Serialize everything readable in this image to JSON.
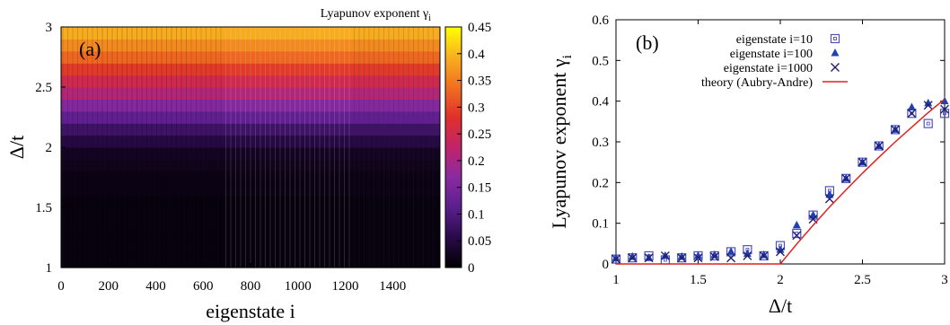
{
  "chart_data": [
    {
      "type": "heatmap",
      "panel_label": "(a)",
      "xlabel": "eigenstate i",
      "ylabel": "Δ/t",
      "xlim": [
        0,
        1600
      ],
      "ylim": [
        1,
        3
      ],
      "x_ticks": [
        0,
        200,
        400,
        600,
        800,
        1000,
        1200,
        1400
      ],
      "y_ticks": [
        1,
        1.5,
        2,
        2.5,
        3
      ],
      "colorbar": {
        "title_main": "Lyapunov exponent γ",
        "title_sub": "i",
        "range": [
          0,
          0.45
        ],
        "ticks": [
          "0",
          "0.05",
          "0.1",
          "0.15",
          "0.2",
          "0.25",
          "0.3",
          "0.35",
          "0.4",
          "0.45"
        ],
        "colormap": [
          "#000000",
          "#2a0a4a",
          "#5a1f8c",
          "#8a2aa0",
          "#c0246a",
          "#e0302a",
          "#f07020",
          "#f8b020",
          "#ffff00"
        ]
      },
      "rows": [
        {
          "delta": 1.05,
          "gamma": 0.01
        },
        {
          "delta": 1.15,
          "gamma": 0.01
        },
        {
          "delta": 1.25,
          "gamma": 0.01
        },
        {
          "delta": 1.35,
          "gamma": 0.01
        },
        {
          "delta": 1.45,
          "gamma": 0.01
        },
        {
          "delta": 1.55,
          "gamma": 0.01
        },
        {
          "delta": 1.65,
          "gamma": 0.015
        },
        {
          "delta": 1.75,
          "gamma": 0.015
        },
        {
          "delta": 1.85,
          "gamma": 0.02
        },
        {
          "delta": 1.95,
          "gamma": 0.025
        },
        {
          "delta": 2.05,
          "gamma": 0.05
        },
        {
          "delta": 2.15,
          "gamma": 0.08
        },
        {
          "delta": 2.25,
          "gamma": 0.12
        },
        {
          "delta": 2.35,
          "gamma": 0.16
        },
        {
          "delta": 2.45,
          "gamma": 0.21
        },
        {
          "delta": 2.55,
          "gamma": 0.25
        },
        {
          "delta": 2.65,
          "gamma": 0.29
        },
        {
          "delta": 2.75,
          "gamma": 0.33
        },
        {
          "delta": 2.85,
          "gamma": 0.36
        },
        {
          "delta": 2.95,
          "gamma": 0.39
        }
      ]
    },
    {
      "type": "scatter",
      "panel_label": "(b)",
      "xlabel": "Δ/t",
      "ylabel": "Lyapunov exponent γ",
      "ylabel_sub": "i",
      "xlim": [
        1,
        3
      ],
      "ylim": [
        0,
        0.6
      ],
      "x_ticks": [
        1,
        1.5,
        2,
        2.5,
        3
      ],
      "y_ticks": [
        0,
        0.1,
        0.2,
        0.3,
        0.4,
        0.5,
        0.6
      ],
      "legend_position": "top-center",
      "series": [
        {
          "name": "eigenstate i=10",
          "marker": "square",
          "color": "#5050c0",
          "x": [
            1.0,
            1.1,
            1.2,
            1.3,
            1.4,
            1.5,
            1.6,
            1.7,
            1.8,
            1.9,
            2.0,
            2.1,
            2.2,
            2.3,
            2.4,
            2.5,
            2.6,
            2.7,
            2.8,
            2.9,
            3.0
          ],
          "y": [
            0.012,
            0.015,
            0.02,
            0.01,
            0.015,
            0.02,
            0.02,
            0.03,
            0.035,
            0.02,
            0.045,
            0.075,
            0.12,
            0.18,
            0.21,
            0.25,
            0.29,
            0.33,
            0.37,
            0.345,
            0.37
          ]
        },
        {
          "name": "eigenstate i=100",
          "marker": "triangle",
          "color": "#2040b0",
          "x": [
            1.0,
            1.1,
            1.2,
            1.3,
            1.4,
            1.5,
            1.6,
            1.7,
            1.8,
            1.9,
            2.0,
            2.1,
            2.2,
            2.3,
            2.4,
            2.5,
            2.6,
            2.7,
            2.8,
            2.9,
            3.0
          ],
          "y": [
            0.015,
            0.018,
            0.015,
            0.02,
            0.018,
            0.02,
            0.022,
            0.03,
            0.025,
            0.022,
            0.035,
            0.095,
            0.12,
            0.17,
            0.21,
            0.25,
            0.29,
            0.33,
            0.385,
            0.395,
            0.4
          ]
        },
        {
          "name": "eigenstate i=1000",
          "marker": "x",
          "color": "#202070",
          "x": [
            1.0,
            1.1,
            1.2,
            1.3,
            1.4,
            1.5,
            1.6,
            1.7,
            1.8,
            1.9,
            2.0,
            2.1,
            2.2,
            2.3,
            2.4,
            2.5,
            2.6,
            2.7,
            2.8,
            2.9,
            3.0
          ],
          "y": [
            0.012,
            0.015,
            0.015,
            0.02,
            0.015,
            0.015,
            0.018,
            0.015,
            0.02,
            0.02,
            0.03,
            0.07,
            0.11,
            0.16,
            0.21,
            0.25,
            0.29,
            0.33,
            0.37,
            0.39,
            0.38
          ]
        },
        {
          "name": "theory (Aubry-Andre)",
          "marker": "line",
          "color": "#e02020",
          "x": [
            1.0,
            2.0,
            2.1,
            2.2,
            2.3,
            2.4,
            2.5,
            2.6,
            2.7,
            2.8,
            2.9,
            3.0
          ],
          "y": [
            0.0,
            0.0,
            0.049,
            0.095,
            0.14,
            0.182,
            0.223,
            0.262,
            0.3,
            0.336,
            0.372,
            0.405
          ]
        }
      ]
    }
  ]
}
